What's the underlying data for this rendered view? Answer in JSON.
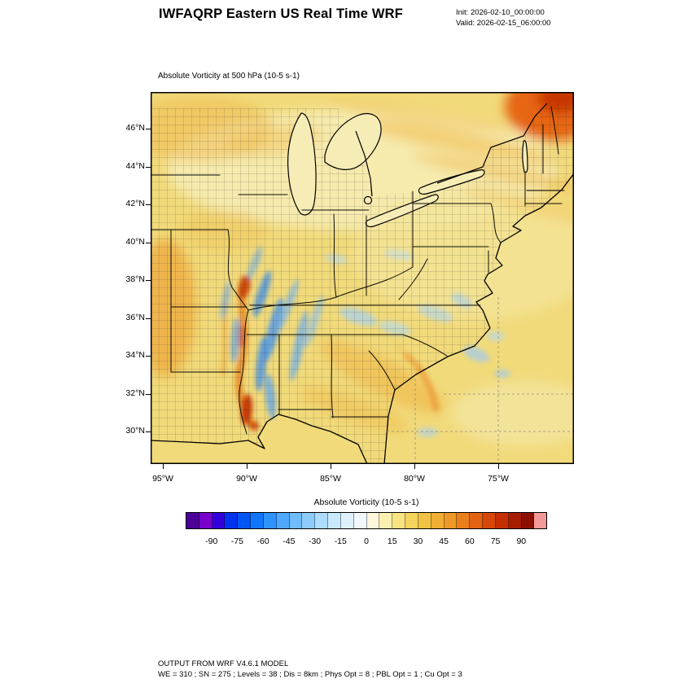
{
  "header": {
    "title": "IWFAQRP Eastern US Real Time WRF",
    "init_label": "Init: 2026-02-10_00:00:00",
    "valid_label": "Valid: 2026-02-15_06:00:00"
  },
  "plot": {
    "field_title": "Absolute Vorticity at 500 hPa   (10-5 s-1)"
  },
  "chart_data": {
    "type": "heatmap",
    "title": "Absolute Vorticity at 500 hPa (10-5 s-1)",
    "region": "Eastern US",
    "variable": "Absolute Vorticity",
    "units": "10-5 s-1",
    "level": "500 hPa",
    "lat_ticks": [
      "46°N",
      "44°N",
      "42°N",
      "40°N",
      "38°N",
      "36°N",
      "34°N",
      "32°N",
      "30°N"
    ],
    "lon_ticks": [
      "95°W",
      "90°W",
      "85°W",
      "80°W",
      "75°W"
    ],
    "colorbar": {
      "title": "Absolute Vorticity  (10-5 s-1)",
      "ticks": [
        "-90",
        "-75",
        "-60",
        "-45",
        "-30",
        "-15",
        "0",
        "15",
        "30",
        "45",
        "60",
        "75",
        "90"
      ],
      "value_range": [
        -105,
        105
      ],
      "colors": [
        "#4c0099",
        "#7700cc",
        "#3300dd",
        "#0033ee",
        "#0055f5",
        "#1177fa",
        "#2f93ff",
        "#4fa8ff",
        "#6fbcff",
        "#8eccff",
        "#aedcff",
        "#c9e9ff",
        "#def1fc",
        "#f0f8fb",
        "#fdf8dc",
        "#faf0b0",
        "#f7e382",
        "#f4d45c",
        "#f2c243",
        "#f0ae33",
        "#ee9827",
        "#ea7f1c",
        "#e36312",
        "#d84708",
        "#c52e02",
        "#a81c00",
        "#8c0f00",
        "#f49999"
      ]
    },
    "base_field_color": "#f1da7a",
    "field_features": [
      {
        "area": "Maine / New Brunswick corner",
        "description": "strong positive vorticity maximum (+60 to +90)"
      },
      {
        "area": "Lower Mississippi Valley (AR/MS/LA/TN)",
        "description": "alternating filaments of negative (-30 to -60) and strong positive (+60 to +90) vorticity"
      },
      {
        "area": "Great Lakes / Ohio Valley",
        "description": "weak positive background (+5 to +20), pale band across the lakes"
      },
      {
        "area": "Carolinas and offshore Atlantic",
        "description": "scattered weak negative patches (-15 to -30) and an arced positive streak near the coast"
      },
      {
        "area": "Canada north of Great Lakes",
        "description": "smooth diagonal positive streaks (+30 to +45), no county mesh"
      }
    ]
  },
  "footer": {
    "line1": "OUTPUT FROM WRF V4.6.1 MODEL",
    "line2": "WE = 310 ; SN = 275 ; Levels = 38 ; Dis = 8km ; Phys Opt = 8 ; PBL Opt = 1 ; Cu Opt = 3"
  }
}
